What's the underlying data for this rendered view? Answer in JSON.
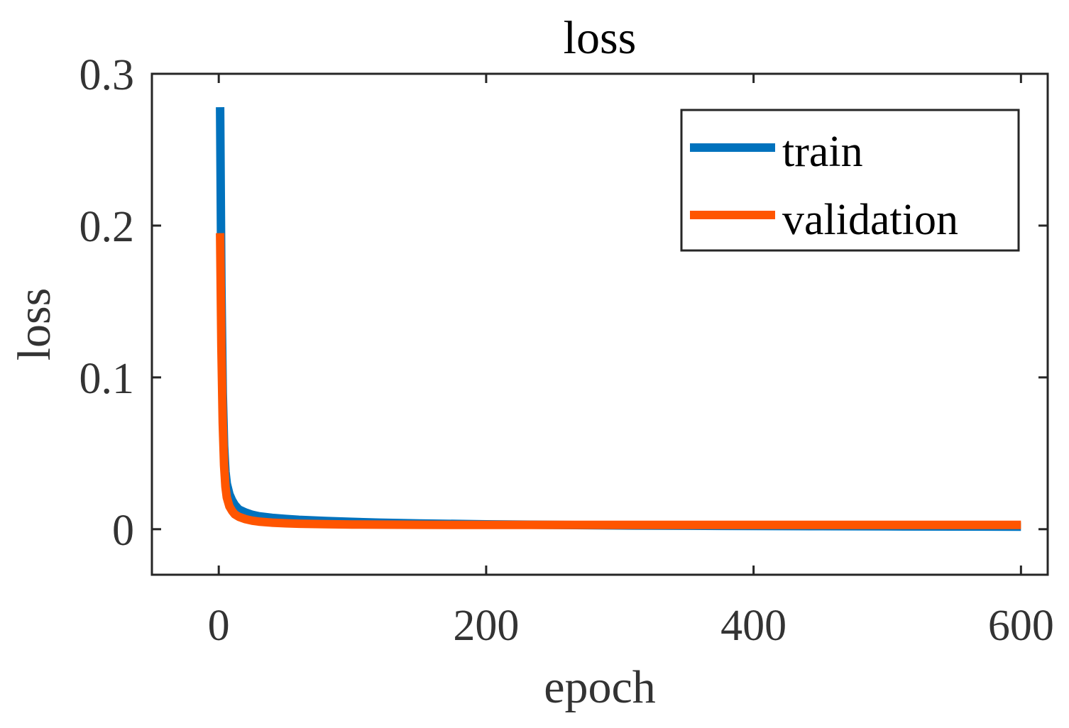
{
  "chart_data": {
    "type": "line",
    "title": "loss",
    "xlabel": "epoch",
    "ylabel": "loss",
    "xlim": [
      -50,
      620
    ],
    "ylim": [
      -0.03,
      0.3
    ],
    "xticks": [
      0,
      200,
      400,
      600
    ],
    "xtick_labels": [
      "0",
      "200",
      "400",
      "600"
    ],
    "yticks": [
      0,
      0.1,
      0.2,
      0.3
    ],
    "ytick_labels": [
      "0",
      "0.1",
      "0.2",
      "0.3"
    ],
    "grid": false,
    "legend_position": "top-right",
    "series": [
      {
        "name": "train",
        "color": "#0072BD",
        "x": [
          1,
          2,
          3,
          4,
          5,
          6,
          8,
          10,
          12,
          15,
          20,
          25,
          30,
          40,
          50,
          60,
          80,
          100,
          120,
          150,
          200,
          250,
          300,
          350,
          400,
          450,
          500,
          550,
          600
        ],
        "y": [
          0.278,
          0.16,
          0.09,
          0.055,
          0.038,
          0.03,
          0.023,
          0.019,
          0.016,
          0.013,
          0.011,
          0.0095,
          0.0085,
          0.0075,
          0.0068,
          0.0062,
          0.0054,
          0.0048,
          0.0043,
          0.0038,
          0.0032,
          0.0028,
          0.0025,
          0.0023,
          0.0021,
          0.002,
          0.0019,
          0.0018,
          0.0017
        ]
      },
      {
        "name": "validation",
        "color": "#FF5500",
        "x": [
          1,
          2,
          3,
          4,
          5,
          6,
          8,
          10,
          12,
          15,
          20,
          25,
          30,
          40,
          50,
          60,
          80,
          100,
          120,
          150,
          200,
          250,
          300,
          350,
          400,
          450,
          500,
          550,
          600
        ],
        "y": [
          0.195,
          0.12,
          0.07,
          0.042,
          0.028,
          0.021,
          0.015,
          0.012,
          0.0098,
          0.0082,
          0.0066,
          0.0056,
          0.005,
          0.0043,
          0.0039,
          0.0036,
          0.0033,
          0.0031,
          0.003,
          0.0029,
          0.0028,
          0.0028,
          0.0028,
          0.0028,
          0.0028,
          0.0028,
          0.0028,
          0.0028,
          0.0028
        ]
      }
    ]
  }
}
